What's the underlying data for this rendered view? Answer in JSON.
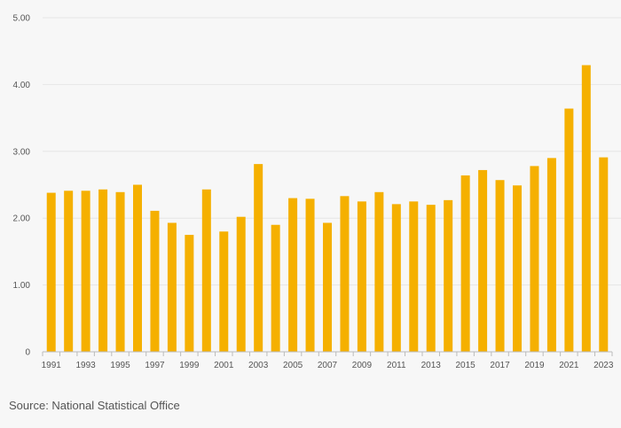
{
  "source": "Source: National Statistical Office",
  "colors": {
    "bar": "#f5b000",
    "grid": "#e6e6e6",
    "axis": "#bbbbbb",
    "text": "#555555",
    "background": "#f7f7f7"
  },
  "chart_data": {
    "type": "bar",
    "title": "",
    "xlabel": "",
    "ylabel": "",
    "ylim": [
      0,
      5
    ],
    "grid": true,
    "legend": "none",
    "y_ticks": [
      {
        "value": 0,
        "label": "0"
      },
      {
        "value": 1,
        "label": "1.00"
      },
      {
        "value": 2,
        "label": "2.00"
      },
      {
        "value": 3,
        "label": "3.00"
      },
      {
        "value": 4,
        "label": "4.00"
      },
      {
        "value": 5,
        "label": "5.00"
      }
    ],
    "categories": [
      "1991",
      "1992",
      "1993",
      "1994",
      "1995",
      "1996",
      "1997",
      "1998",
      "1999",
      "2000",
      "2001",
      "2002",
      "2003",
      "2004",
      "2005",
      "2006",
      "2007",
      "2008",
      "2009",
      "2010",
      "2011",
      "2012",
      "2013",
      "2014",
      "2015",
      "2016",
      "2017",
      "2018",
      "2019",
      "2020",
      "2021",
      "2022",
      "2023"
    ],
    "x_tick_labels": [
      "1991",
      "1993",
      "1995",
      "1997",
      "1999",
      "2001",
      "2003",
      "2005",
      "2007",
      "2009",
      "2011",
      "2013",
      "2015",
      "2017",
      "2019",
      "2021",
      "2023"
    ],
    "values": [
      2.38,
      2.41,
      2.41,
      2.43,
      2.39,
      2.5,
      2.11,
      1.93,
      1.75,
      2.43,
      1.8,
      2.02,
      2.81,
      1.9,
      2.3,
      2.29,
      1.93,
      2.33,
      2.25,
      2.39,
      2.21,
      2.25,
      2.2,
      2.27,
      2.64,
      2.72,
      2.57,
      2.49,
      2.78,
      2.9,
      3.64,
      4.29,
      2.91
    ]
  }
}
